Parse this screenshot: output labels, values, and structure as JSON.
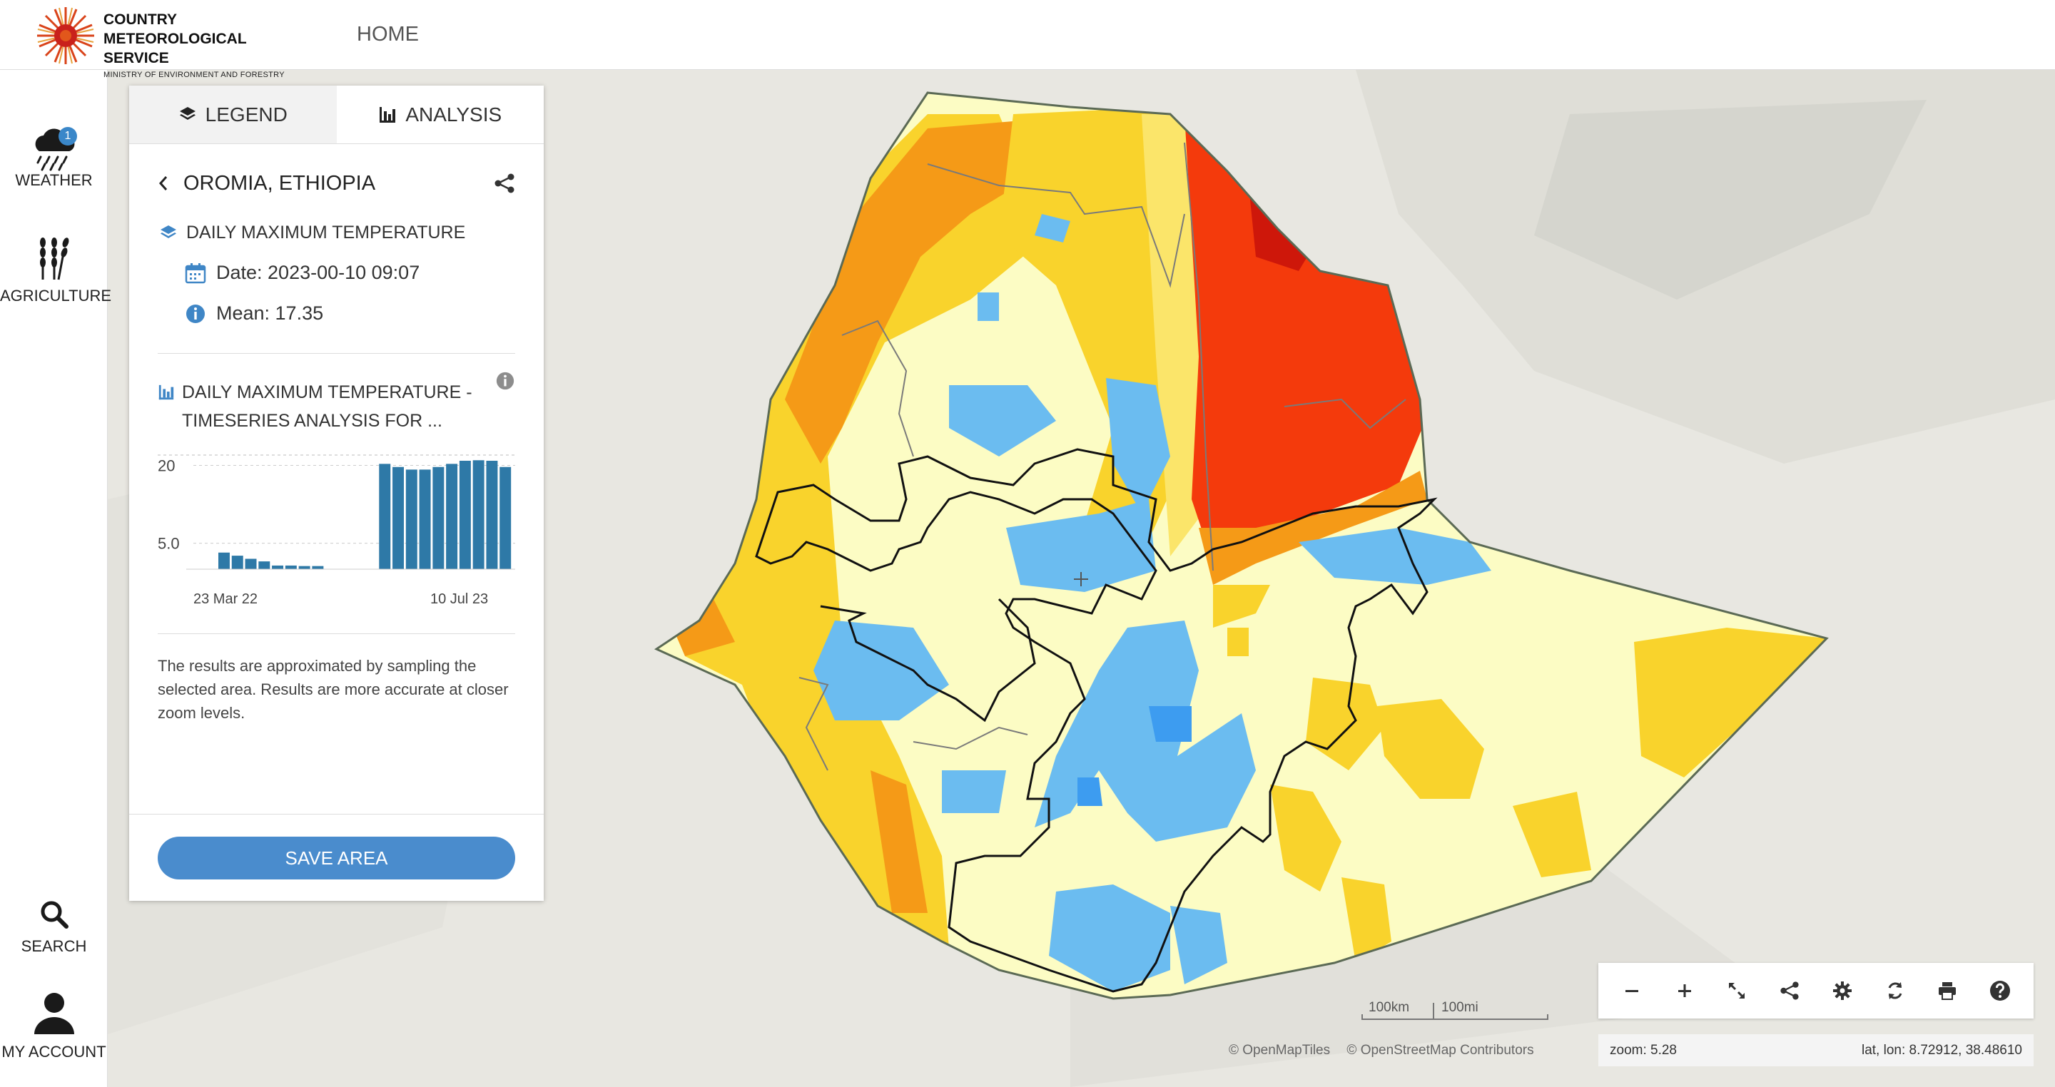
{
  "header": {
    "brand_title": "COUNTRY METEOROLOGICAL SERVICE",
    "brand_subtitle": "MINISTRY OF ENVIRONMENT AND FORESTRY",
    "nav_home": "HOME"
  },
  "sidebar": {
    "weather_label": "WEATHER",
    "weather_badge": "1",
    "agriculture_label": "AGRICULTURE",
    "search_label": "SEARCH",
    "account_label": "MY ACCOUNT"
  },
  "panel": {
    "tab_legend": "LEGEND",
    "tab_analysis": "ANALYSIS",
    "place_title": "OROMIA, ETHIOPIA",
    "layer_name": "DAILY MAXIMUM TEMPERATURE",
    "date_text": "Date: 2023-00-10 09:07",
    "mean_text": "Mean: 17.35",
    "timeseries_title": "DAILY MAXIMUM TEMPERATURE - TIMESERIES ANALYSIS FOR ...",
    "note": "The results are approximated by sampling the selected area. Results are more accurate at closer zoom levels.",
    "save_button": "SAVE AREA"
  },
  "chart_data": {
    "type": "bar",
    "y_tick_labels": [
      "20",
      "5.0"
    ],
    "x_tick_labels": [
      "23 Mar 22",
      "10 Jul 23"
    ],
    "ylim": [
      0,
      22
    ],
    "values": [
      3.2,
      2.6,
      2.0,
      1.5,
      0.7,
      0.7,
      0.6,
      0.6,
      0,
      0,
      0,
      0,
      20.3,
      19.7,
      19.2,
      19.2,
      19.7,
      20.3,
      20.9,
      21.0,
      20.9,
      19.7
    ],
    "color": "#2e79a7"
  },
  "map": {
    "scale_km": "100km",
    "scale_mi": "100mi",
    "attribution_1": "© OpenMapTiles",
    "attribution_2": "© OpenStreetMap Contributors",
    "zoom_text": "zoom: 5.28",
    "latlon_text": "lat, lon: 8.72912, 38.48610"
  },
  "colors": {
    "accent": "#4a8ccd",
    "bar": "#2e79a7",
    "hot": "#f43a0c",
    "warm": "#f9d32c",
    "cool": "#6bbcf0",
    "pale": "#fcfcc4"
  }
}
